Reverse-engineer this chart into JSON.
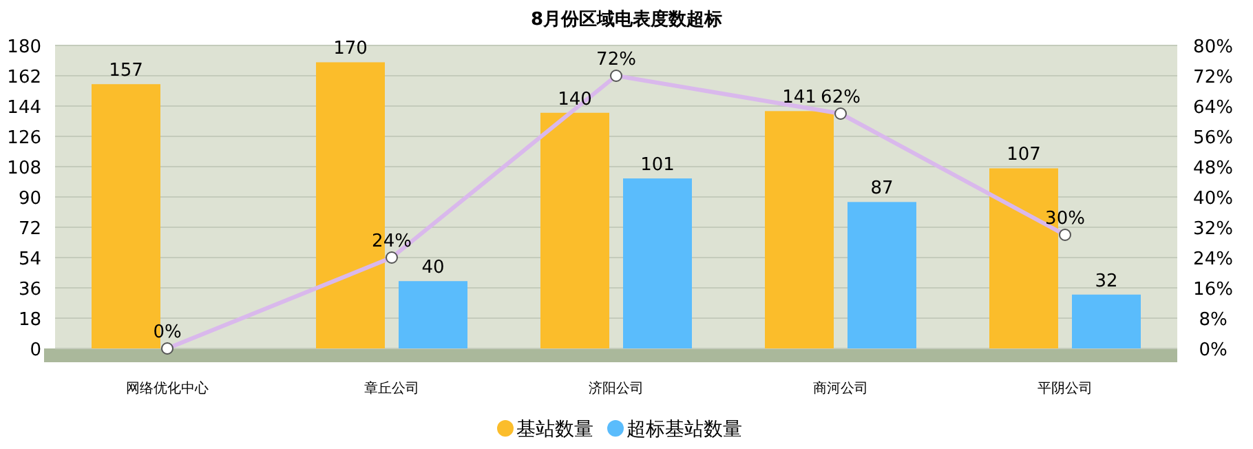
{
  "chart_data": {
    "type": "bar",
    "title": "8月份区域电表度数超标",
    "categories": [
      "网络优化中心",
      "章丘公司",
      "济阳公司",
      "商河公司",
      "平阴公司"
    ],
    "series": [
      {
        "name": "基站数量",
        "color": "#fbbd2b",
        "values": [
          157,
          170,
          140,
          141,
          107
        ],
        "value_labels": [
          "157",
          "170",
          "140",
          "141",
          "107"
        ]
      },
      {
        "name": "超标基站数量",
        "color": "#5abcfc",
        "values": [
          null,
          40,
          101,
          87,
          32
        ],
        "value_labels": [
          null,
          "40",
          "101",
          "87",
          "32"
        ]
      },
      {
        "type": "line",
        "axis": "y2",
        "color": "#d9b8ec",
        "values": [
          0,
          24,
          72,
          62,
          30
        ],
        "value_labels": [
          "0%",
          "24%",
          "72%",
          "62%",
          "30%"
        ]
      }
    ],
    "ylim": [
      0,
      180
    ],
    "yticks": [
      0,
      18,
      36,
      54,
      72,
      90,
      108,
      126,
      144,
      162,
      180
    ],
    "y2lim": [
      0,
      80
    ],
    "y2ticks": [
      {
        "value": 0,
        "label": "0%"
      },
      {
        "value": 8,
        "label": "8%"
      },
      {
        "value": 16,
        "label": "16%"
      },
      {
        "value": 24,
        "label": "24%"
      },
      {
        "value": 32,
        "label": "32%"
      },
      {
        "value": 40,
        "label": "40%"
      },
      {
        "value": 48,
        "label": "48%"
      },
      {
        "value": 56,
        "label": "56%"
      },
      {
        "value": 64,
        "label": "64%"
      },
      {
        "value": 72,
        "label": "72%"
      },
      {
        "value": 80,
        "label": "80%"
      }
    ],
    "grid": "y",
    "legend": "bottom",
    "marker": "circle"
  }
}
